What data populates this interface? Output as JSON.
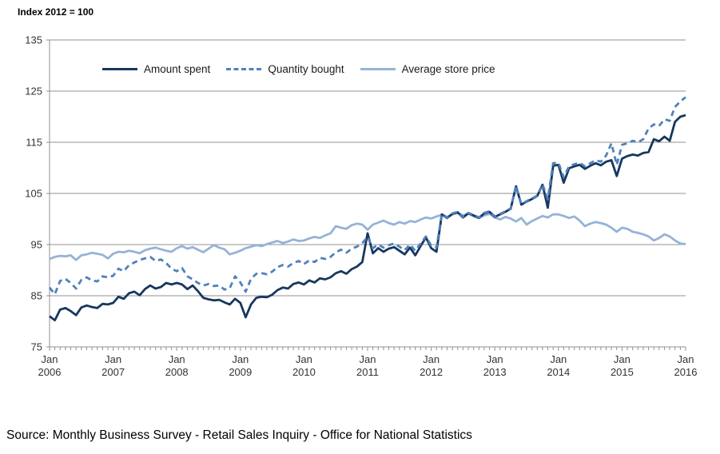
{
  "title": "Index 2012 = 100",
  "source": "Source: Monthly Business Survey - Retail Sales Inquiry - Office for National Statistics",
  "chart_data": {
    "type": "line",
    "title": "Index 2012 = 100",
    "x_frequency": "monthly",
    "x_start": "Jan 2006",
    "x_end": "Jan 2016",
    "month_label": "Jan",
    "years": [
      "2006",
      "2007",
      "2008",
      "2009",
      "2010",
      "2011",
      "2012",
      "2013",
      "2014",
      "2015",
      "2016"
    ],
    "ylim": [
      75,
      135
    ],
    "yticks": [
      135,
      125,
      115,
      105,
      95,
      85,
      75
    ],
    "grid": true,
    "legend_position": "top-center-inside",
    "colors": {
      "amount_spent": "#17375E",
      "quantity_bought": "#4F81BD",
      "average_store_price": "#95B3D7",
      "gridline": "#909090",
      "tick_text": "#333333"
    },
    "series": [
      {
        "name": "Amount spent",
        "style": "solid",
        "color": "#17375E",
        "values": [
          81.0,
          80.2,
          82.3,
          82.6,
          82.0,
          81.2,
          82.7,
          83.1,
          82.8,
          82.6,
          83.4,
          83.3,
          83.6,
          84.8,
          84.4,
          85.5,
          85.8,
          85.1,
          86.3,
          87.0,
          86.4,
          86.7,
          87.5,
          87.2,
          87.5,
          87.2,
          86.3,
          87.0,
          85.9,
          84.6,
          84.3,
          84.1,
          84.2,
          83.7,
          83.3,
          84.4,
          83.6,
          80.8,
          83.3,
          84.6,
          84.8,
          84.7,
          85.2,
          86.1,
          86.6,
          86.4,
          87.3,
          87.6,
          87.2,
          88.0,
          87.6,
          88.4,
          88.2,
          88.6,
          89.4,
          89.8,
          89.3,
          90.2,
          90.7,
          91.6,
          97.2,
          93.3,
          94.3,
          93.6,
          94.2,
          94.5,
          93.8,
          93.1,
          94.4,
          92.9,
          94.7,
          96.4,
          94.3,
          93.6,
          100.9,
          100.2,
          101.0,
          101.3,
          100.3,
          101.1,
          100.7,
          100.2,
          101.1,
          101.4,
          100.4,
          100.9,
          101.4,
          102.0,
          106.4,
          102.8,
          103.4,
          103.9,
          104.5,
          106.7,
          102.2,
          110.4,
          110.6,
          107.1,
          109.9,
          110.3,
          110.6,
          109.8,
          110.4,
          110.9,
          110.5,
          111.2,
          111.5,
          108.4,
          111.8,
          112.3,
          112.6,
          112.4,
          112.9,
          113.1,
          115.6,
          115.2,
          116.1,
          115.3,
          119.0,
          120.0,
          120.3
        ]
      },
      {
        "name": "Quantity bought",
        "style": "dashed",
        "color": "#4F81BD",
        "values": [
          86.6,
          85.3,
          87.9,
          88.3,
          87.5,
          86.4,
          88.1,
          88.6,
          88.0,
          87.8,
          88.8,
          88.6,
          88.9,
          90.3,
          89.8,
          91.0,
          91.5,
          92.0,
          92.3,
          92.6,
          91.8,
          92.1,
          91.4,
          90.3,
          89.8,
          90.4,
          88.8,
          88.2,
          87.5,
          87.0,
          87.3,
          86.9,
          87.0,
          86.2,
          86.5,
          88.8,
          87.6,
          85.8,
          88.3,
          89.3,
          89.4,
          89.2,
          89.7,
          90.6,
          91.0,
          90.7,
          91.4,
          91.8,
          91.2,
          91.9,
          91.6,
          92.4,
          92.2,
          92.6,
          93.5,
          94.0,
          93.4,
          94.2,
          94.6,
          95.3,
          96.5,
          94.3,
          95.0,
          94.4,
          94.9,
          95.2,
          94.6,
          93.9,
          95.0,
          93.8,
          95.2,
          96.6,
          94.8,
          94.4,
          101.0,
          100.3,
          101.1,
          101.4,
          100.4,
          101.2,
          100.8,
          100.3,
          101.2,
          101.5,
          100.5,
          101.0,
          101.5,
          102.1,
          106.5,
          102.9,
          103.5,
          104.0,
          104.6,
          106.8,
          103.9,
          110.9,
          111.0,
          108.2,
          110.3,
          110.7,
          111.0,
          110.3,
          110.9,
          111.5,
          111.2,
          112.4,
          114.8,
          110.6,
          114.5,
          114.8,
          115.3,
          115.0,
          115.6,
          117.7,
          118.5,
          118.2,
          119.5,
          119.2,
          121.9,
          123.0,
          123.8
        ]
      },
      {
        "name": "Average store price",
        "style": "solid",
        "color": "#95B3D7",
        "values": [
          92.2,
          92.6,
          92.8,
          92.7,
          92.9,
          92.0,
          92.9,
          93.1,
          93.4,
          93.2,
          93.0,
          92.3,
          93.2,
          93.6,
          93.5,
          93.8,
          93.6,
          93.3,
          93.9,
          94.2,
          94.4,
          94.1,
          93.8,
          93.6,
          94.3,
          94.7,
          94.2,
          94.5,
          94.0,
          93.5,
          94.2,
          94.9,
          94.4,
          94.1,
          93.1,
          93.4,
          93.8,
          94.3,
          94.6,
          94.9,
          94.7,
          95.1,
          95.4,
          95.7,
          95.3,
          95.6,
          96.0,
          95.7,
          95.8,
          96.2,
          96.5,
          96.3,
          96.8,
          97.2,
          98.6,
          98.3,
          98.1,
          98.8,
          99.1,
          98.9,
          97.9,
          98.9,
          99.3,
          99.7,
          99.2,
          98.9,
          99.4,
          99.1,
          99.6,
          99.4,
          99.9,
          100.3,
          100.1,
          100.5,
          100.8,
          100.4,
          100.9,
          101.2,
          100.7,
          101.1,
          100.5,
          100.2,
          100.7,
          101.0,
          100.3,
          99.9,
          100.4,
          100.1,
          99.5,
          100.2,
          98.9,
          99.6,
          100.1,
          100.6,
          100.3,
          100.9,
          100.9,
          100.6,
          100.2,
          100.5,
          99.7,
          98.6,
          99.1,
          99.4,
          99.2,
          98.9,
          98.3,
          97.5,
          98.3,
          98.1,
          97.5,
          97.3,
          97.0,
          96.6,
          95.8,
          96.3,
          97.0,
          96.6,
          95.8,
          95.2,
          95.1
        ]
      }
    ]
  }
}
